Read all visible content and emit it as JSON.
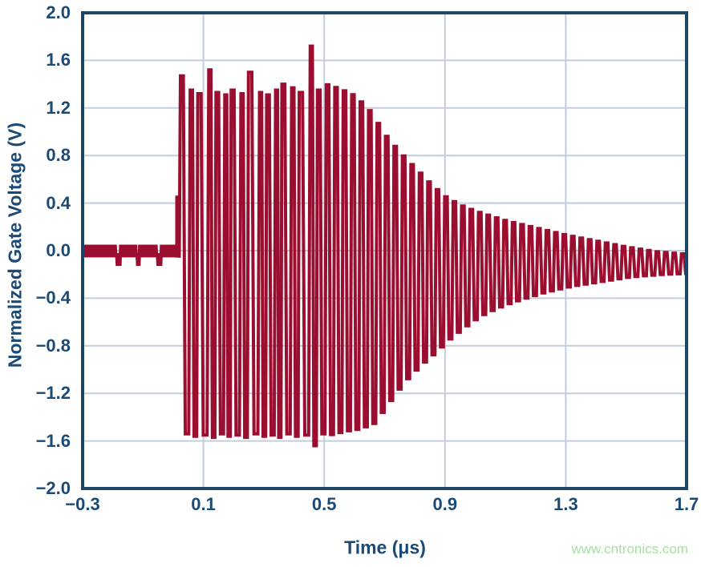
{
  "watermark": {
    "text": "www.cntronics.com"
  },
  "chart_data": {
    "type": "line",
    "xlabel": "Time (μs)",
    "ylabel": "Normalized Gate Voltage (V)",
    "xlim": [
      -0.3,
      1.7
    ],
    "ylim": [
      -2.0,
      2.0
    ],
    "grid": true,
    "legend": "none",
    "xticks": [
      {
        "v": -0.3,
        "label": "−0.3"
      },
      {
        "v": 0.1,
        "label": "0.1"
      },
      {
        "v": 0.5,
        "label": "0.5"
      },
      {
        "v": 0.9,
        "label": "0.9"
      },
      {
        "v": 1.3,
        "label": "1.3"
      },
      {
        "v": 1.7,
        "label": "1.7"
      }
    ],
    "yticks": [
      {
        "v": 2.0,
        "label": "2.0"
      },
      {
        "v": 1.6,
        "label": "1.6"
      },
      {
        "v": 1.2,
        "label": "1.2"
      },
      {
        "v": 0.8,
        "label": "0.8"
      },
      {
        "v": 0.4,
        "label": "0.4"
      },
      {
        "v": 0.0,
        "label": "0.0"
      },
      {
        "v": -0.4,
        "label": "−0.4"
      },
      {
        "v": -0.8,
        "label": "−0.8"
      },
      {
        "v": -1.2,
        "label": "−1.2"
      },
      {
        "v": -1.6,
        "label": "−1.6"
      },
      {
        "v": -2.0,
        "label": "−2.0"
      }
    ],
    "colors": {
      "trace": "#9B0E2F",
      "axis": "#1B4A75",
      "border": "#1B4668",
      "grid": "#C3CDDB",
      "watermark": "#A8DFA2",
      "background": "#FFFFFF"
    },
    "signal": {
      "description": "Ringing burst: flat baseline near 0 V until t=0.01 us, sustained oscillation (~1.33 V top, -1.55 V bottom) from t=0.02 to t=0.5 us, then exponential-like decay to a small residual ripple around -0.1 V by t=1.7 us.",
      "baseline_band": [
        0.05,
        -0.055
      ],
      "baseline_notches_t": [
        -0.183,
        -0.117,
        -0.048
      ],
      "pre_pulse": {
        "t": 0.012,
        "v": 0.45,
        "width": 0.008
      },
      "burst_start_t": 0.024,
      "burst_end_t": 0.5,
      "end_t": 1.7,
      "period_us": 0.028,
      "burst_upper_v": 1.31,
      "burst_lower_v": -1.54,
      "top_spikes": [
        [
          0.035,
          1.47
        ],
        [
          0.13,
          1.52
        ],
        [
          0.26,
          1.5
        ],
        [
          0.36,
          1.4
        ],
        [
          0.465,
          1.72
        ]
      ],
      "bottom_spikes": [
        [
          0.455,
          -1.64
        ]
      ],
      "decay_envelope": {
        "t": [
          0.5,
          0.55,
          0.6,
          0.65,
          0.7,
          0.75,
          0.8,
          0.85,
          0.9,
          0.95,
          1.0,
          1.05,
          1.1,
          1.15,
          1.2,
          1.3,
          1.4,
          1.5,
          1.6,
          1.7
        ],
        "upper": [
          1.4,
          1.36,
          1.3,
          1.17,
          0.97,
          0.82,
          0.69,
          0.56,
          0.45,
          0.38,
          0.33,
          0.29,
          0.25,
          0.22,
          0.19,
          0.13,
          0.08,
          0.03,
          -0.01,
          -0.03
        ],
        "lower": [
          -1.55,
          -1.52,
          -1.5,
          -1.45,
          -1.27,
          -1.1,
          -0.97,
          -0.86,
          -0.74,
          -0.64,
          -0.55,
          -0.49,
          -0.44,
          -0.4,
          -0.36,
          -0.3,
          -0.26,
          -0.22,
          -0.2,
          -0.19
        ]
      }
    }
  }
}
